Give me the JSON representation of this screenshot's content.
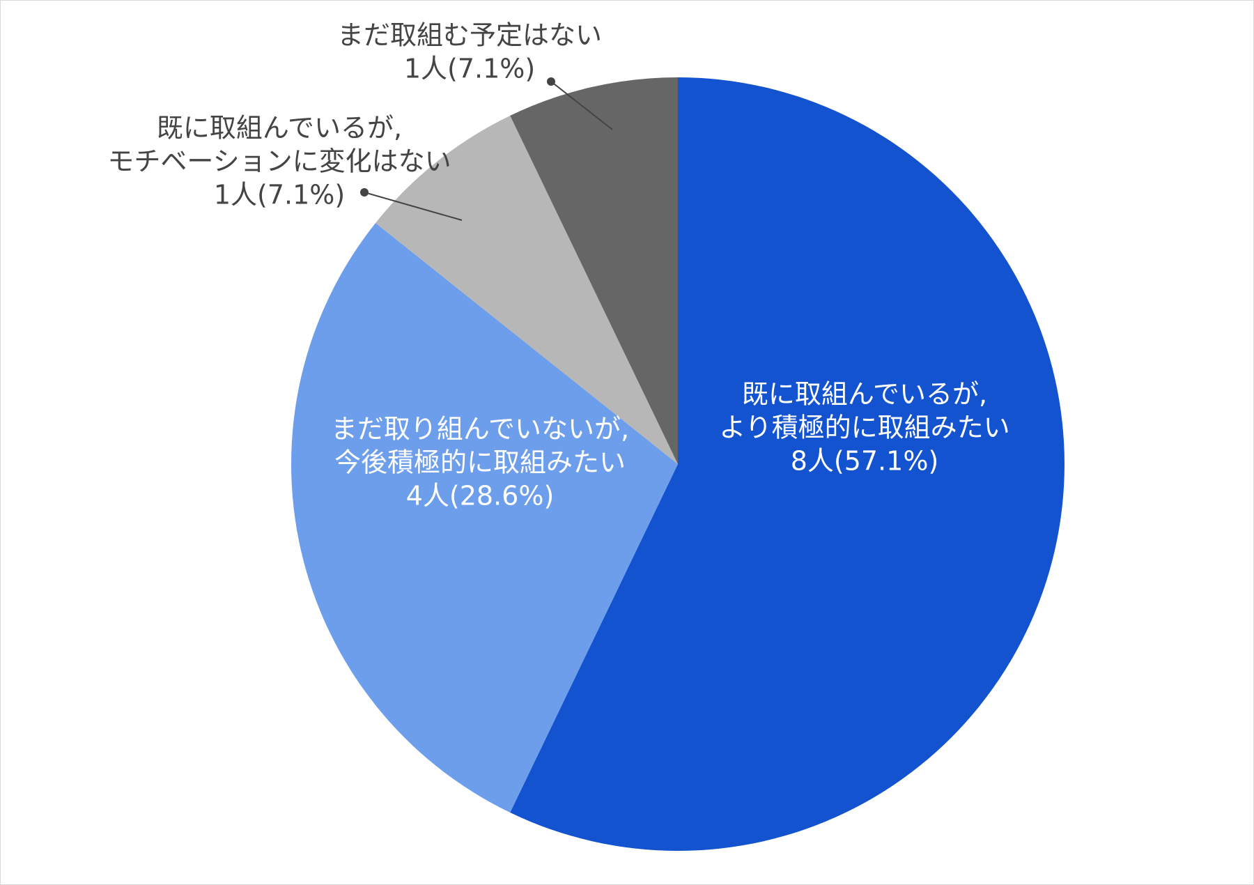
{
  "chart_data": {
    "type": "pie",
    "title": "",
    "start_angle_deg": 0,
    "direction": "clockwise",
    "legend": "none",
    "slices": [
      {
        "lines": [
          "既に取組んでいるが,",
          "より積極的に取組みたい",
          "8人(57.1%)"
        ],
        "count": 8,
        "percent": 57.1,
        "color": "#1353d0",
        "label_style": "inside"
      },
      {
        "lines": [
          "まだ取り組んでいないが,",
          "今後積極的に取組みたい",
          "4人(28.6%)"
        ],
        "count": 4,
        "percent": 28.6,
        "color": "#6d9eeb",
        "label_style": "inside"
      },
      {
        "lines": [
          "既に取組んでいるが,",
          "モチベーションに変化はない",
          "1人(7.1%)"
        ],
        "count": 1,
        "percent": 7.1,
        "color": "#b7b7b7",
        "label_style": "callout"
      },
      {
        "lines": [
          "まだ取組む予定はない",
          "1人(7.1%)"
        ],
        "count": 1,
        "percent": 7.1,
        "color": "#666666",
        "label_style": "callout"
      }
    ]
  }
}
